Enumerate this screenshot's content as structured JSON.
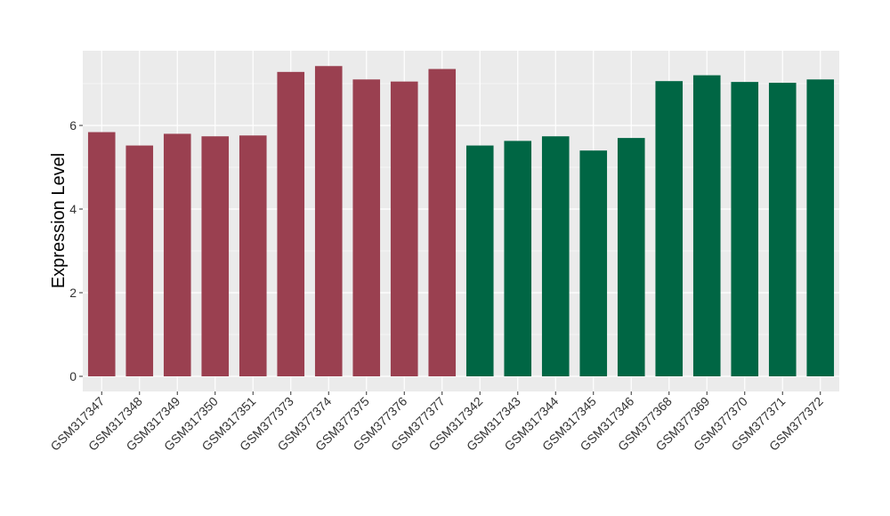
{
  "chart_data": {
    "type": "bar",
    "title": "",
    "xlabel": "",
    "ylabel": "Expression Level",
    "ylim": [
      0,
      7.8
    ],
    "yticks": [
      0,
      2,
      4,
      6
    ],
    "ytick_labels": [
      "0",
      "2",
      "4",
      "6"
    ],
    "grid": true,
    "legend": "none",
    "categories": [
      "GSM317347",
      "GSM317348",
      "GSM317349",
      "GSM317350",
      "GSM317351",
      "GSM377373",
      "GSM377374",
      "GSM377375",
      "GSM377376",
      "GSM377377",
      "GSM317342",
      "GSM317343",
      "GSM317344",
      "GSM317345",
      "GSM317346",
      "GSM377368",
      "GSM377369",
      "GSM377370",
      "GSM377371",
      "GSM377372"
    ],
    "values": [
      5.84,
      5.52,
      5.8,
      5.74,
      5.76,
      7.28,
      7.42,
      7.1,
      7.05,
      7.35,
      5.52,
      5.63,
      5.74,
      5.4,
      5.7,
      7.06,
      7.2,
      7.04,
      7.02,
      7.1
    ],
    "group_colors": [
      "#9a4050",
      "#9a4050",
      "#9a4050",
      "#9a4050",
      "#9a4050",
      "#9a4050",
      "#9a4050",
      "#9a4050",
      "#9a4050",
      "#9a4050",
      "#006644",
      "#006644",
      "#006644",
      "#006644",
      "#006644",
      "#006644",
      "#006644",
      "#006644",
      "#006644",
      "#006644"
    ],
    "panel_background": "#ebebeb",
    "grid_color": "#ffffff"
  }
}
